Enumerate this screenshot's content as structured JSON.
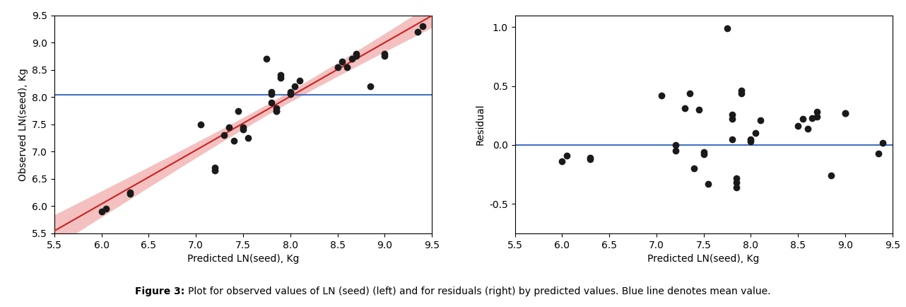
{
  "chart_data": [
    {
      "type": "scatter",
      "x": [
        6.0,
        6.05,
        6.3,
        6.3,
        7.05,
        7.2,
        7.2,
        7.3,
        7.35,
        7.4,
        7.45,
        7.5,
        7.5,
        7.55,
        7.75,
        7.8,
        7.8,
        7.8,
        7.85,
        7.85,
        7.85,
        7.9,
        7.9,
        8.0,
        8.0,
        8.05,
        8.1,
        8.5,
        8.55,
        8.6,
        8.65,
        8.7,
        8.7,
        8.85,
        9.0,
        9.0,
        9.35,
        9.4
      ],
      "values": [
        5.9,
        5.95,
        6.22,
        6.25,
        7.5,
        6.65,
        6.7,
        7.3,
        7.45,
        7.2,
        7.75,
        7.4,
        7.45,
        7.25,
        8.7,
        7.9,
        8.05,
        8.1,
        7.75,
        7.75,
        7.8,
        8.35,
        8.4,
        8.05,
        8.1,
        8.2,
        8.3,
        8.55,
        8.65,
        8.55,
        8.7,
        8.75,
        8.8,
        8.2,
        8.75,
        8.8,
        9.2,
        9.3
      ],
      "color": "#1a1a1a",
      "mean_line": {
        "value": 8.04,
        "color": "#4472c4"
      },
      "fit": {
        "x": [
          5.5,
          5.75,
          6.0,
          6.25,
          6.5,
          6.75,
          7.0,
          7.25,
          7.5,
          7.75,
          8.0,
          8.25,
          8.5,
          8.75,
          9.0,
          9.25,
          9.5
        ],
        "values": [
          5.545,
          5.792,
          6.039,
          6.286,
          6.532,
          6.779,
          7.026,
          7.273,
          7.519,
          7.766,
          8.013,
          8.26,
          8.507,
          8.753,
          9.0,
          9.247,
          9.494
        ],
        "lower": [
          5.251,
          5.526,
          5.8,
          6.073,
          6.346,
          6.617,
          6.886,
          7.152,
          7.413,
          7.667,
          7.913,
          8.151,
          8.382,
          8.608,
          8.832,
          9.054,
          9.275
        ],
        "upper": [
          5.839,
          6.058,
          6.278,
          6.498,
          6.719,
          6.941,
          7.166,
          7.393,
          7.626,
          7.865,
          8.113,
          8.369,
          8.632,
          8.898,
          9.168,
          9.44,
          9.712
        ],
        "color": "#cc2222",
        "band_color": "#f5c0c0"
      },
      "xlabel": "Predicted LN(seed), Kg",
      "ylabel": "Observed LN(seed), Kg",
      "xlim": [
        5.5,
        9.5
      ],
      "ylim": [
        5.5,
        9.5
      ],
      "xticks": [
        5.5,
        6.0,
        6.5,
        7.0,
        7.5,
        8.0,
        8.5,
        9.0,
        9.5
      ],
      "yticks": [
        5.5,
        6.0,
        6.5,
        7.0,
        7.5,
        8.0,
        8.5,
        9.0,
        9.5
      ],
      "grid": false
    },
    {
      "type": "scatter",
      "x": [
        6.0,
        6.05,
        6.3,
        6.3,
        7.05,
        7.2,
        7.2,
        7.3,
        7.35,
        7.4,
        7.45,
        7.5,
        7.5,
        7.55,
        7.75,
        7.8,
        7.8,
        7.8,
        7.85,
        7.85,
        7.85,
        7.9,
        7.9,
        8.0,
        8.0,
        8.05,
        8.1,
        8.5,
        8.55,
        8.6,
        8.65,
        8.7,
        8.7,
        8.85,
        9.0,
        9.0,
        9.35,
        9.4
      ],
      "values": [
        -0.14,
        -0.09,
        -0.12,
        -0.11,
        0.42,
        -0.05,
        0.0,
        0.31,
        0.44,
        -0.2,
        0.3,
        -0.06,
        -0.08,
        -0.33,
        0.99,
        0.05,
        0.22,
        0.26,
        -0.36,
        -0.32,
        -0.28,
        0.44,
        0.46,
        0.03,
        0.05,
        0.1,
        0.21,
        0.16,
        0.22,
        0.14,
        0.23,
        0.24,
        0.28,
        -0.26,
        0.27,
        0.27,
        -0.07,
        0.02
      ],
      "color": "#1a1a1a",
      "mean_line": {
        "value": 0.0,
        "color": "#4472c4"
      },
      "xlabel": "Predicted LN(seed), Kg",
      "ylabel": "Residual",
      "xlim": [
        5.5,
        9.5
      ],
      "ylim": [
        -0.75,
        1.1
      ],
      "xticks": [
        5.5,
        6.0,
        6.5,
        7.0,
        7.5,
        8.0,
        8.5,
        9.0,
        9.5
      ],
      "yticks": [
        -0.5,
        0.0,
        0.5,
        1.0
      ],
      "grid": false
    }
  ],
  "caption": {
    "label": "Figure 3:",
    "text": "Plot for observed values of LN (seed) (left) and for residuals (right) by predicted values. Blue line denotes mean value."
  }
}
